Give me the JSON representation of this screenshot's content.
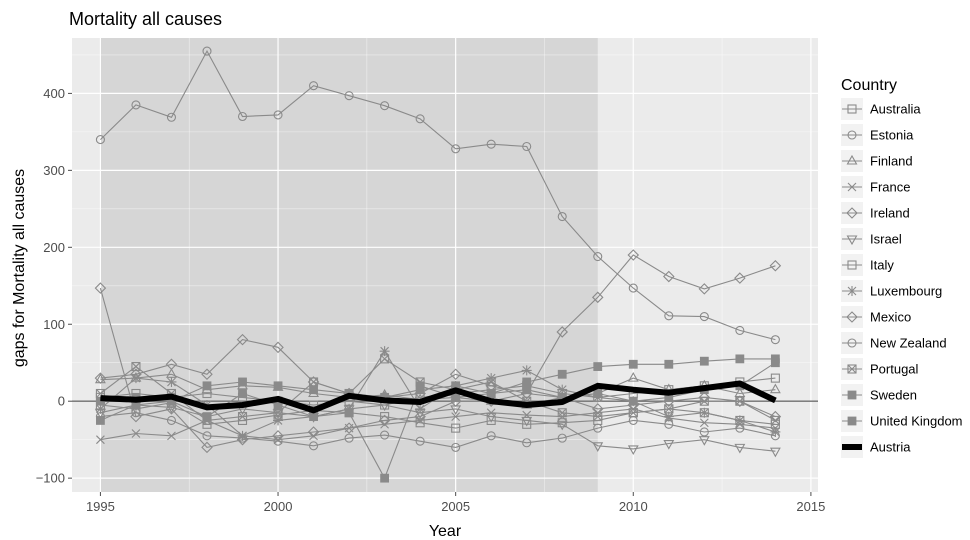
{
  "chart_data": {
    "type": "line",
    "title": "Mortality all causes",
    "xlabel": "Year",
    "ylabel": "gaps for Mortality all causes",
    "xlim": [
      1994.2,
      2015.2
    ],
    "ylim": [
      -118,
      472
    ],
    "x_ticks": [
      1995,
      2000,
      2005,
      2010,
      2015
    ],
    "y_ticks": [
      -100,
      0,
      100,
      200,
      300,
      400
    ],
    "grid": true,
    "shaded_region": {
      "from": 1995,
      "to": 2009
    },
    "reference_line_y": 0,
    "legend_title": "Country",
    "legend_position": "right",
    "x": [
      1995,
      1996,
      1997,
      1998,
      1999,
      2000,
      2001,
      2002,
      2003,
      2004,
      2005,
      2006,
      2007,
      2008,
      2009,
      2010,
      2011,
      2012,
      2013,
      2014
    ],
    "series": [
      {
        "name": "Australia",
        "marker": "square",
        "values": [
          -5,
          -10,
          -2,
          -30,
          -25,
          -18,
          -12,
          -15,
          -20,
          -28,
          -35,
          -25,
          -30,
          -28,
          -25,
          -15,
          -10,
          -15,
          -25,
          -30
        ]
      },
      {
        "name": "Estonia",
        "marker": "circle",
        "values": [
          340,
          385,
          369,
          455,
          370,
          372,
          410,
          397,
          384,
          367,
          328,
          334,
          331,
          240,
          188,
          147,
          111,
          110,
          92,
          80
        ]
      },
      {
        "name": "Finland",
        "marker": "triangle",
        "values": [
          28,
          30,
          35,
          15,
          20,
          18,
          10,
          5,
          8,
          2,
          5,
          0,
          -5,
          5,
          10,
          30,
          15,
          20,
          10,
          15
        ]
      },
      {
        "name": "France",
        "marker": "x",
        "values": [
          -50,
          -42,
          -45,
          -25,
          -45,
          -50,
          -45,
          -35,
          -30,
          -25,
          -20,
          -15,
          -18,
          -20,
          -15,
          -10,
          -22,
          -28,
          -30,
          -35
        ]
      },
      {
        "name": "Ireland",
        "marker": "diamond",
        "values": [
          30,
          35,
          48,
          35,
          80,
          70,
          25,
          10,
          5,
          10,
          35,
          20,
          10,
          5,
          -10,
          -5,
          0,
          5,
          0,
          -20
        ]
      },
      {
        "name": "Israel",
        "marker": "triangle-down",
        "values": [
          -15,
          -5,
          -8,
          -20,
          -10,
          -15,
          -20,
          -10,
          -5,
          -15,
          -10,
          -20,
          -25,
          -30,
          -58,
          -62,
          -55,
          -50,
          -60,
          -65
        ]
      },
      {
        "name": "Italy",
        "marker": "square",
        "values": [
          5,
          10,
          5,
          10,
          5,
          0,
          -5,
          0,
          -5,
          5,
          10,
          15,
          20,
          10,
          5,
          10,
          15,
          20,
          25,
          30
        ]
      },
      {
        "name": "Luxembourg",
        "marker": "star",
        "values": [
          -10,
          30,
          25,
          -5,
          -45,
          -25,
          -20,
          -10,
          65,
          -10,
          20,
          30,
          40,
          15,
          5,
          0,
          -20,
          -15,
          -25,
          -40
        ]
      },
      {
        "name": "Mexico",
        "marker": "diamond",
        "values": [
          147,
          -20,
          -10,
          -60,
          -50,
          -45,
          -40,
          -35,
          -25,
          -20,
          0,
          0,
          10,
          90,
          135,
          190,
          162,
          146,
          160,
          176
        ]
      },
      {
        "name": "New Zealand",
        "marker": "circle",
        "values": [
          -20,
          -15,
          -25,
          -45,
          -48,
          -52,
          -58,
          -48,
          -44,
          -52,
          -60,
          -45,
          -54,
          -48,
          -35,
          -25,
          -30,
          -40,
          -35,
          -45
        ]
      },
      {
        "name": "Portugal",
        "marker": "square-x",
        "values": [
          10,
          45,
          10,
          -25,
          -20,
          -15,
          25,
          10,
          55,
          25,
          15,
          25,
          0,
          -15,
          -20,
          -15,
          -10,
          0,
          0,
          -25
        ]
      },
      {
        "name": "Sweden",
        "marker": "square-solid",
        "values": [
          -25,
          -5,
          0,
          20,
          25,
          20,
          15,
          10,
          5,
          15,
          20,
          10,
          25,
          35,
          45,
          48,
          48,
          52,
          55,
          55
        ]
      },
      {
        "name": "United Kingdom",
        "marker": "square-solid",
        "values": [
          0,
          5,
          0,
          -20,
          10,
          -5,
          -20,
          -15,
          -100,
          20,
          5,
          10,
          15,
          5,
          10,
          0,
          5,
          15,
          20,
          50
        ]
      },
      {
        "name": "Austria",
        "marker": "none",
        "highlight": true,
        "values": [
          4,
          2,
          6,
          -8,
          -5,
          3,
          -12,
          7,
          1,
          -1,
          14,
          0,
          -5,
          -1,
          20,
          15,
          11,
          17,
          23,
          1
        ]
      }
    ]
  },
  "colors": {
    "panel_background": "#ebebeb",
    "shaded_region": "#d6d6d6",
    "grid_major": "#ffffff",
    "series_line": "#8a8a8a",
    "highlight_line": "#000000",
    "reference_line": "#6e6e6e"
  }
}
